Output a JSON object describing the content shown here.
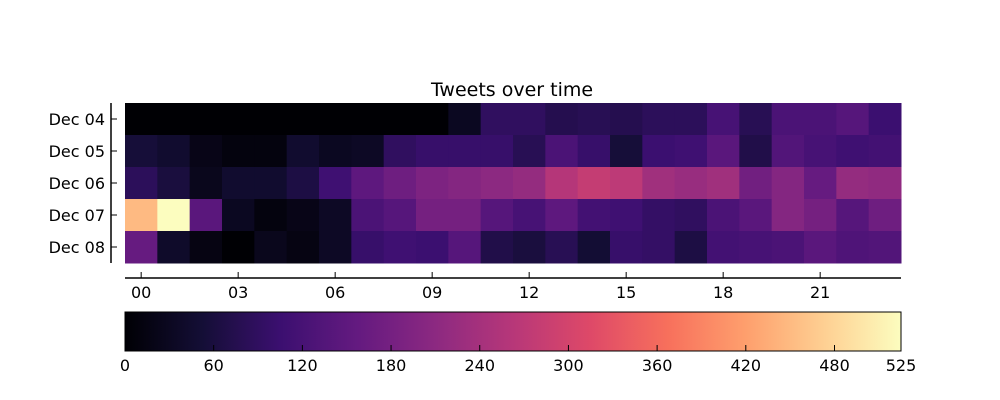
{
  "chart_data": {
    "type": "heatmap",
    "title": "Tweets over time",
    "rows": [
      "Dec 04",
      "Dec 05",
      "Dec 06",
      "Dec 07",
      "Dec 08"
    ],
    "columns": [
      "00",
      "01",
      "02",
      "03",
      "04",
      "05",
      "06",
      "07",
      "08",
      "09",
      "10",
      "11",
      "12",
      "13",
      "14",
      "15",
      "16",
      "17",
      "18",
      "19",
      "20",
      "21",
      "22",
      "23"
    ],
    "x_tick_labels": [
      "00",
      "03",
      "06",
      "09",
      "12",
      "15",
      "18",
      "21"
    ],
    "values": [
      [
        0,
        0,
        0,
        0,
        0,
        0,
        0,
        0,
        0,
        0,
        30,
        90,
        90,
        75,
        80,
        75,
        85,
        85,
        120,
        80,
        125,
        125,
        140,
        105
      ],
      [
        55,
        45,
        20,
        10,
        10,
        45,
        30,
        35,
        90,
        100,
        100,
        100,
        80,
        125,
        100,
        55,
        105,
        110,
        145,
        70,
        135,
        120,
        110,
        115
      ],
      [
        85,
        60,
        25,
        45,
        45,
        65,
        110,
        150,
        170,
        190,
        200,
        210,
        220,
        260,
        280,
        270,
        235,
        225,
        235,
        175,
        200,
        160,
        220,
        215
      ],
      [
        450,
        525,
        145,
        30,
        10,
        20,
        35,
        125,
        140,
        180,
        180,
        140,
        120,
        150,
        115,
        110,
        95,
        90,
        125,
        145,
        200,
        180,
        140,
        170
      ],
      [
        160,
        40,
        15,
        0,
        25,
        15,
        35,
        100,
        110,
        105,
        140,
        70,
        60,
        80,
        50,
        100,
        95,
        65,
        115,
        120,
        125,
        145,
        130,
        135
      ]
    ],
    "colorbar": {
      "min": 0,
      "max": 525,
      "ticks": [
        0,
        60,
        120,
        180,
        240,
        300,
        360,
        420,
        480,
        525
      ],
      "colormap": "magma"
    },
    "grid": false
  }
}
